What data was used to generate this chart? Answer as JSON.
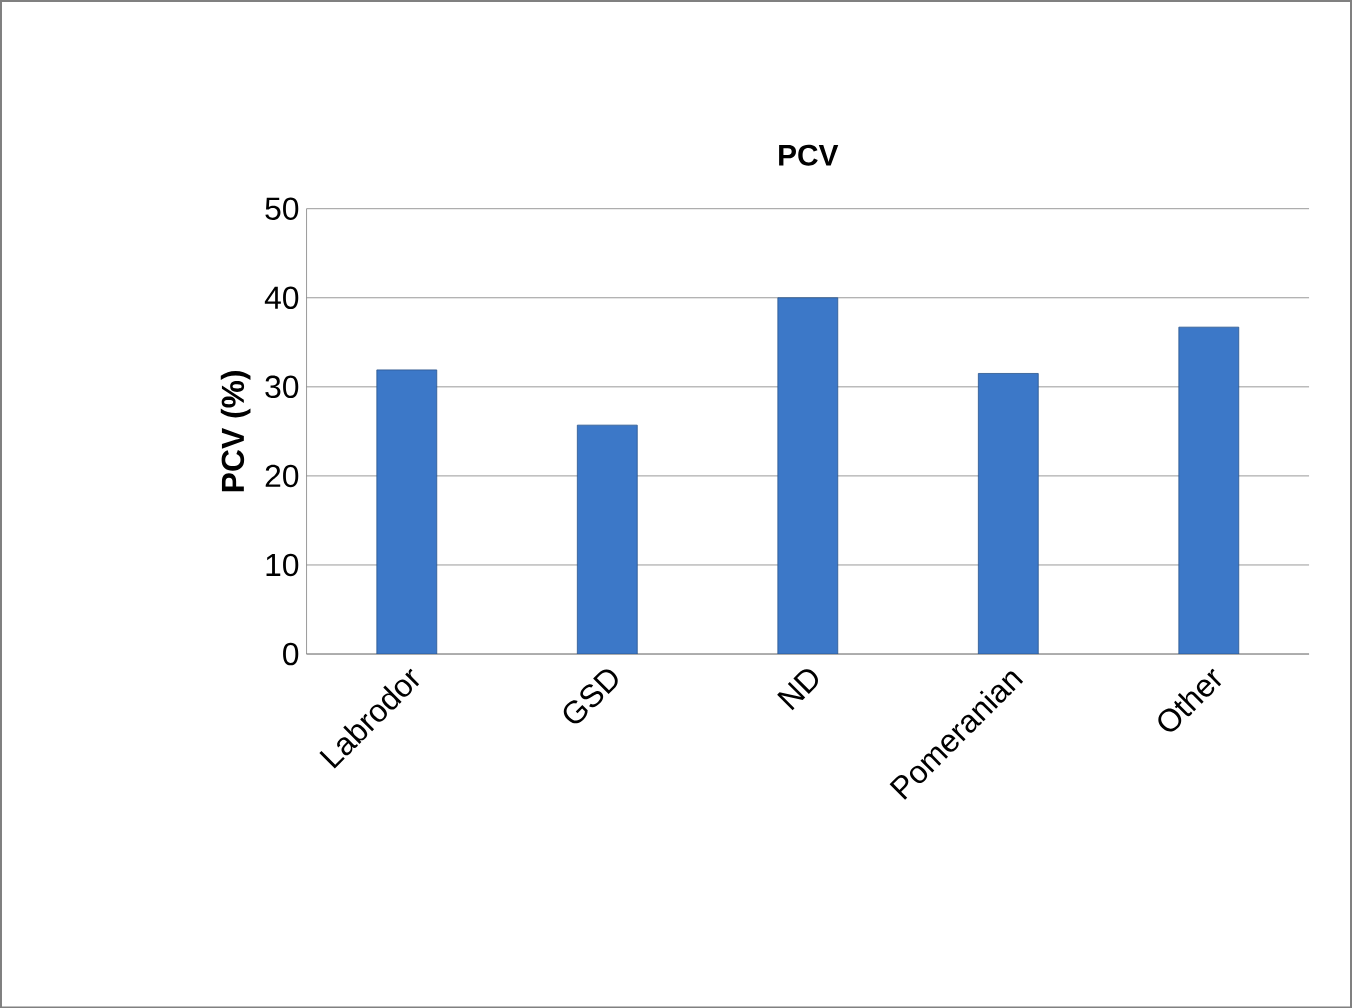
{
  "chart_data": {
    "type": "bar",
    "title": "PCV",
    "ylabel": "PCV (%)",
    "categories": [
      "Labrodor",
      "GSD",
      "ND",
      "Pomeranian",
      "Other"
    ],
    "values": [
      31.9,
      25.7,
      40,
      31.5,
      36.7
    ],
    "color": "#3c78c8",
    "ylim": [
      0,
      50
    ],
    "yticks": [
      0,
      10,
      20,
      30,
      40,
      50
    ],
    "grid": "y"
  }
}
